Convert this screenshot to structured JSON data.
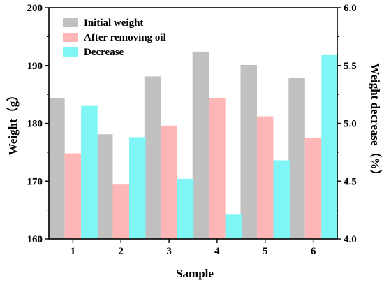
{
  "chart_data": {
    "type": "bar",
    "categories": [
      "1",
      "2",
      "3",
      "4",
      "5",
      "6"
    ],
    "xlabel": "Sample",
    "ylabel_left": "Weight（g）",
    "ylabel_right": "Weight decrease（%）",
    "ylim_left": [
      160,
      200
    ],
    "ylim_right": [
      4.0,
      6.0
    ],
    "yticks_left": [
      "160",
      "170",
      "180",
      "190",
      "200"
    ],
    "yticks_right": [
      "4.0",
      "4.5",
      "5.0",
      "5.5",
      "6.0"
    ],
    "grid": false,
    "legend_position": "top-left",
    "series": [
      {
        "name": "Initial weight",
        "axis": "left",
        "color": "#c0c0c0",
        "values": [
          184.3,
          178.1,
          188.1,
          192.4,
          190.1,
          187.8
        ]
      },
      {
        "name": "After removing oil",
        "axis": "left",
        "color": "#ffb6b6",
        "values": [
          174.8,
          169.4,
          179.6,
          184.3,
          181.2,
          177.4
        ]
      },
      {
        "name": "Decrease",
        "axis": "right",
        "color": "#7ff5f5",
        "values": [
          5.15,
          4.88,
          4.52,
          4.21,
          4.68,
          5.59
        ]
      }
    ]
  }
}
